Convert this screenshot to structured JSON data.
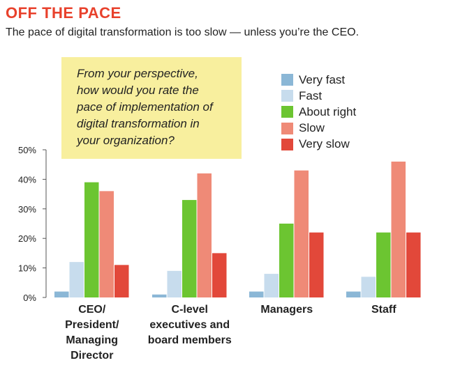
{
  "header": {
    "title": "OFF THE PACE",
    "subtitle": "The pace of digital transformation is too slow — unless you’re the CEO."
  },
  "question": {
    "lines": [
      "From your perspective,",
      "how would you rate the",
      "pace of implementation of",
      "digital transformation in",
      "your organization?"
    ]
  },
  "chart_data": {
    "type": "bar",
    "categories": [
      [
        "CEO/",
        "President/",
        "Managing",
        "Director"
      ],
      [
        "C-level",
        "executives and",
        "board members"
      ],
      [
        "Managers"
      ],
      [
        "Staff"
      ]
    ],
    "series": [
      {
        "name": "Very fast",
        "color": "#8bb7d6",
        "values": [
          2,
          1,
          2,
          2
        ]
      },
      {
        "name": "Fast",
        "color": "#c7dced",
        "values": [
          12,
          9,
          8,
          7
        ]
      },
      {
        "name": "About right",
        "color": "#6cc531",
        "values": [
          39,
          33,
          25,
          22
        ]
      },
      {
        "name": "Slow",
        "color": "#ef8a77",
        "values": [
          36,
          42,
          43,
          46
        ]
      },
      {
        "name": "Very slow",
        "color": "#e2483a",
        "values": [
          11,
          15,
          22,
          22
        ]
      }
    ],
    "yticks": [
      "0%",
      "10%",
      "20%",
      "30%",
      "40%",
      "50%"
    ],
    "ylim": [
      0,
      50
    ],
    "legend_position": "top-right"
  }
}
